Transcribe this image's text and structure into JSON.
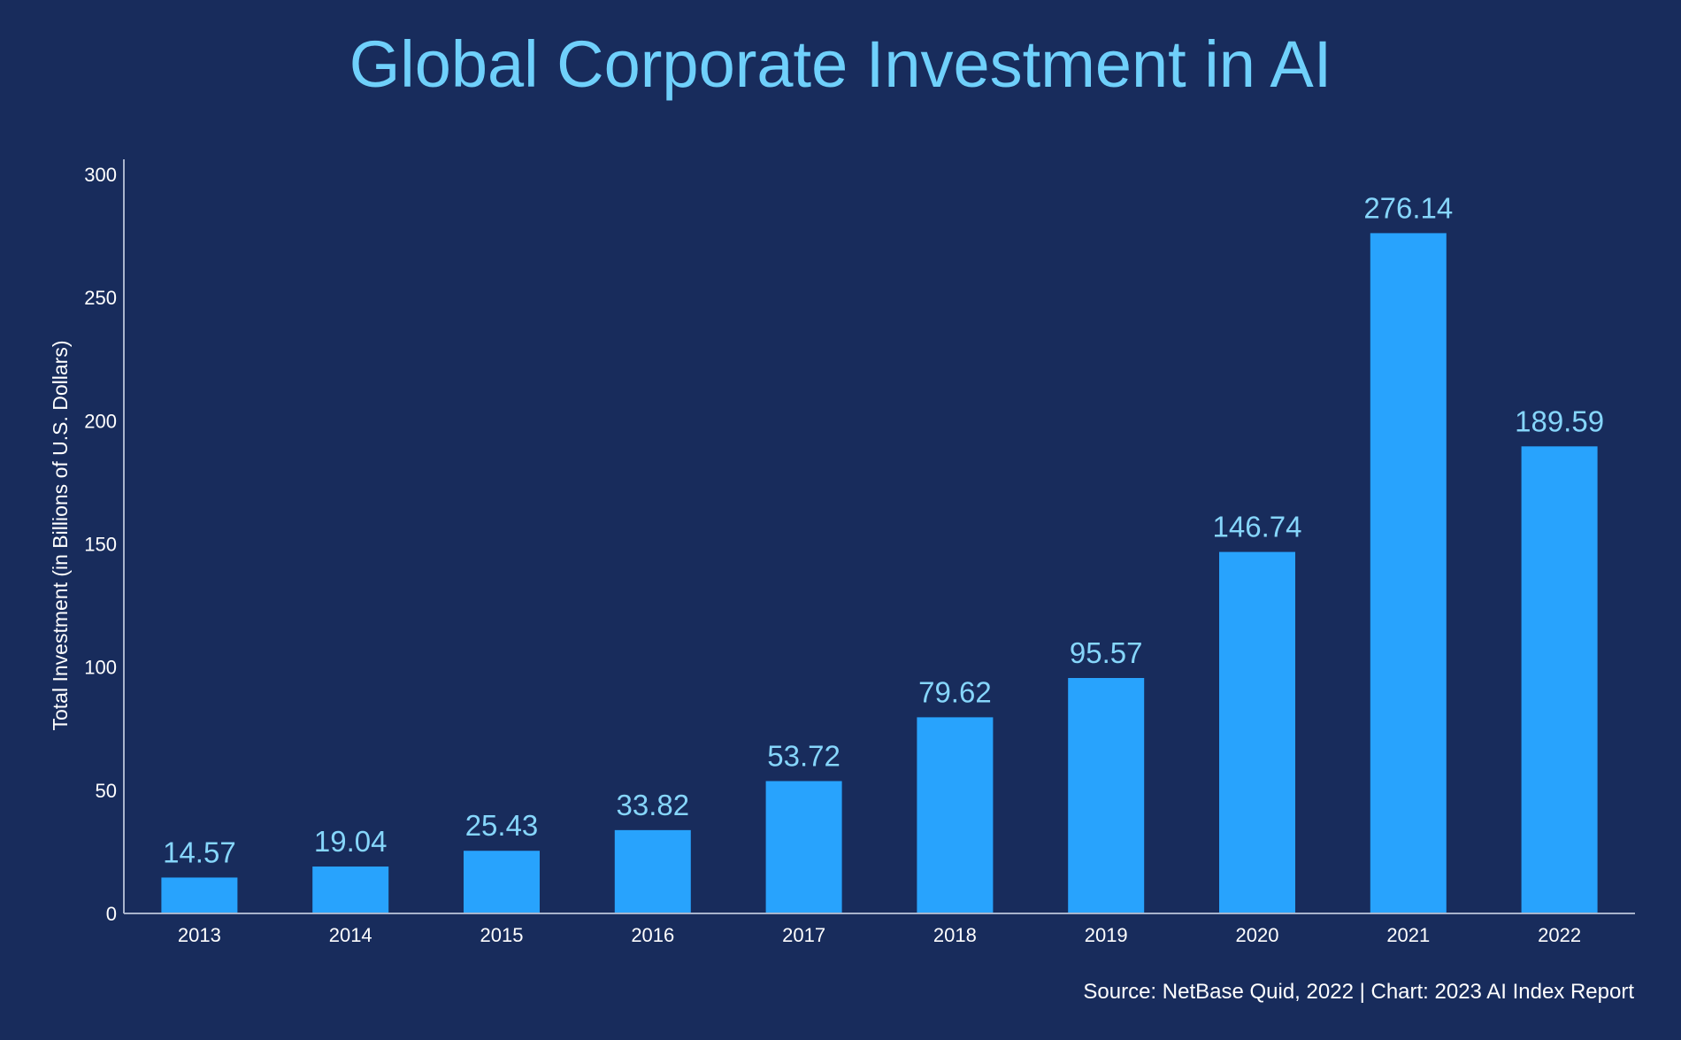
{
  "chart_data": {
    "type": "bar",
    "title": "Global Corporate Investment in AI",
    "xlabel": "",
    "ylabel": "Total Investment (in Billions of U.S. Dollars)",
    "categories": [
      "2013",
      "2014",
      "2015",
      "2016",
      "2017",
      "2018",
      "2019",
      "2020",
      "2021",
      "2022"
    ],
    "values": [
      14.57,
      19.04,
      25.43,
      33.82,
      53.72,
      79.62,
      95.57,
      146.74,
      276.14,
      189.59
    ],
    "value_labels": [
      "14.57",
      "19.04",
      "25.43",
      "33.82",
      "53.72",
      "79.62",
      "95.57",
      "146.74",
      "276.14",
      "189.59"
    ],
    "ylim": [
      0,
      300
    ],
    "yticks": [
      0,
      50,
      100,
      150,
      200,
      250,
      300
    ],
    "ytick_labels": [
      "0",
      "50",
      "100",
      "150",
      "200",
      "250",
      "300"
    ],
    "grid": false,
    "legend": "none",
    "source": "Source: NetBase Quid, 2022 | Chart: 2023 AI Index Report"
  },
  "colors": {
    "background": "#182c5c",
    "bar": "#28a3fd",
    "title": "#6fd0fb",
    "value_label": "#86d6fb",
    "axis": "#a9b4cc",
    "text": "#ffffff"
  }
}
